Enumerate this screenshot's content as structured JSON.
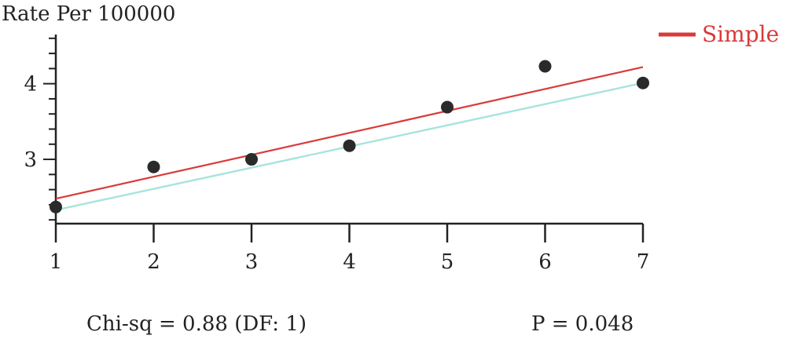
{
  "chart_data": {
    "type": "scatter",
    "ylabel": "Rate Per 100000",
    "xlabel": "",
    "x": [
      1,
      2,
      3,
      4,
      5,
      6,
      7
    ],
    "xticks": [
      "1",
      "2",
      "3",
      "4",
      "5",
      "6",
      "7"
    ],
    "yticks": [
      "3",
      "4"
    ],
    "xlim": [
      1,
      7
    ],
    "ylim": [
      2.15,
      4.65
    ],
    "grid": false,
    "series": [
      {
        "name": "",
        "kind": "points",
        "color": "#2a2a2a",
        "values": [
          2.37,
          2.9,
          3.0,
          3.18,
          3.69,
          4.23,
          4.01
        ]
      },
      {
        "name": "Simple",
        "kind": "line",
        "color": "#d93a3a",
        "values": [
          2.48,
          2.77,
          3.06,
          3.35,
          3.64,
          3.93,
          4.22
        ]
      },
      {
        "name": "",
        "kind": "line",
        "color": "#a8e4dc",
        "values": [
          2.33,
          2.61,
          2.89,
          3.17,
          3.45,
          3.73,
          4.01
        ]
      }
    ],
    "legend": {
      "position": "top-right",
      "entries": [
        "Simple"
      ]
    },
    "annotations": {
      "chi_sq": "Chi-sq = 0.88 (DF: 1)",
      "p_value": "P = 0.048"
    }
  }
}
